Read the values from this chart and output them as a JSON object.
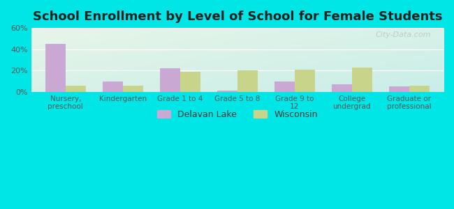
{
  "title": "School Enrollment by Level of School for Female Students",
  "categories": [
    "Nursery,\npreschool",
    "Kindergarten",
    "Grade 1 to 4",
    "Grade 5 to 8",
    "Grade 9 to\n12",
    "College\nundergrad",
    "Graduate or\nprofessional"
  ],
  "delavan_lake": [
    45,
    10,
    22,
    1,
    10,
    7,
    5
  ],
  "wisconsin": [
    6,
    6,
    19,
    20,
    21,
    23,
    6
  ],
  "delavan_color": "#c9a8d4",
  "wisconsin_color": "#c8d48a",
  "background_outer": "#00e5e5",
  "background_inner_left": "#e8f5e8",
  "background_inner_right": "#c8eee8",
  "ylim": [
    0,
    60
  ],
  "yticks": [
    0,
    20,
    40,
    60
  ],
  "ytick_labels": [
    "0%",
    "20%",
    "40%",
    "60%"
  ],
  "legend_label1": "Delavan Lake",
  "legend_label2": "Wisconsin",
  "title_fontsize": 13,
  "bar_width": 0.35
}
